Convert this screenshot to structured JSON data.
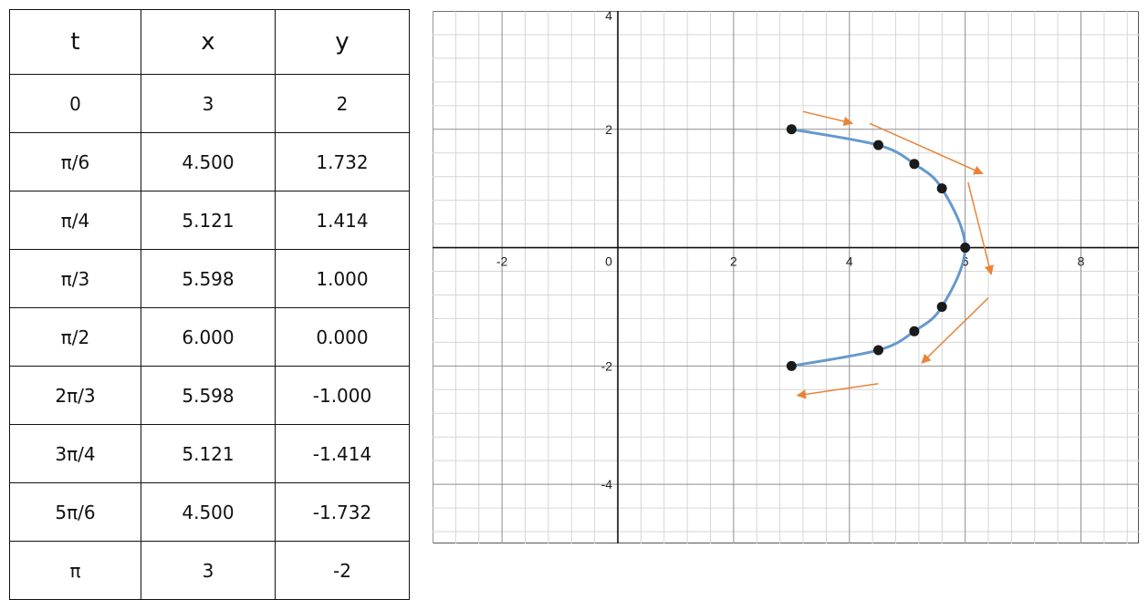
{
  "table": {
    "headers": [
      "t",
      "x",
      "y"
    ],
    "rows": [
      [
        "0",
        "3",
        "2"
      ],
      [
        "π/6",
        "4.500",
        "1.732"
      ],
      [
        "π/4",
        "5.121",
        "1.414"
      ],
      [
        "π/3",
        "5.598",
        "1.000"
      ],
      [
        "π/2",
        "6.000",
        "0.000"
      ],
      [
        "2π/3",
        "5.598",
        "-1.000"
      ],
      [
        "3π/4",
        "5.121",
        "-1.414"
      ],
      [
        "5π/6",
        "4.500",
        "-1.732"
      ],
      [
        "π",
        "3",
        "-2"
      ]
    ]
  },
  "chart_data": {
    "type": "line",
    "title": "",
    "xlabel": "",
    "ylabel": "",
    "xlim": [
      -3.2,
      9
    ],
    "ylim": [
      -5,
      4
    ],
    "grid": true,
    "x_ticks": [
      "-2",
      "0",
      "2",
      "4",
      "6",
      "8"
    ],
    "y_ticks": [
      "4",
      "2",
      "-2",
      "-4"
    ],
    "x": [
      3,
      4.5,
      5.121,
      5.598,
      6.0,
      5.598,
      5.121,
      4.5,
      3
    ],
    "y": [
      2,
      1.732,
      1.414,
      1.0,
      0.0,
      -1.0,
      -1.414,
      -1.732,
      -2
    ],
    "series": [
      {
        "x": [
          3,
          4.5,
          5.121,
          5.598,
          6.0,
          5.598,
          5.121,
          4.5,
          3
        ],
        "y": [
          2,
          1.732,
          1.414,
          1.0,
          0.0,
          -1.0,
          -1.414,
          -1.732,
          -2
        ]
      }
    ],
    "direction_arrows": [
      {
        "from": [
          3.2,
          2.3
        ],
        "to": [
          4.05,
          2.1
        ]
      },
      {
        "from": [
          4.35,
          2.1
        ],
        "to": [
          6.3,
          1.25
        ]
      },
      {
        "from": [
          6.05,
          1.1
        ],
        "to": [
          6.45,
          -0.45
        ]
      },
      {
        "from": [
          6.4,
          -0.85
        ],
        "to": [
          5.25,
          -1.95
        ]
      },
      {
        "from": [
          4.5,
          -2.3
        ],
        "to": [
          3.1,
          -2.5
        ]
      }
    ],
    "colors": {
      "curve": "#6699cc",
      "points": "#1a1a1a",
      "arrows": "#e8843a",
      "grid_minor": "#d6d6d6",
      "grid_major": "#8e8e8e",
      "axis": "#111111"
    }
  }
}
